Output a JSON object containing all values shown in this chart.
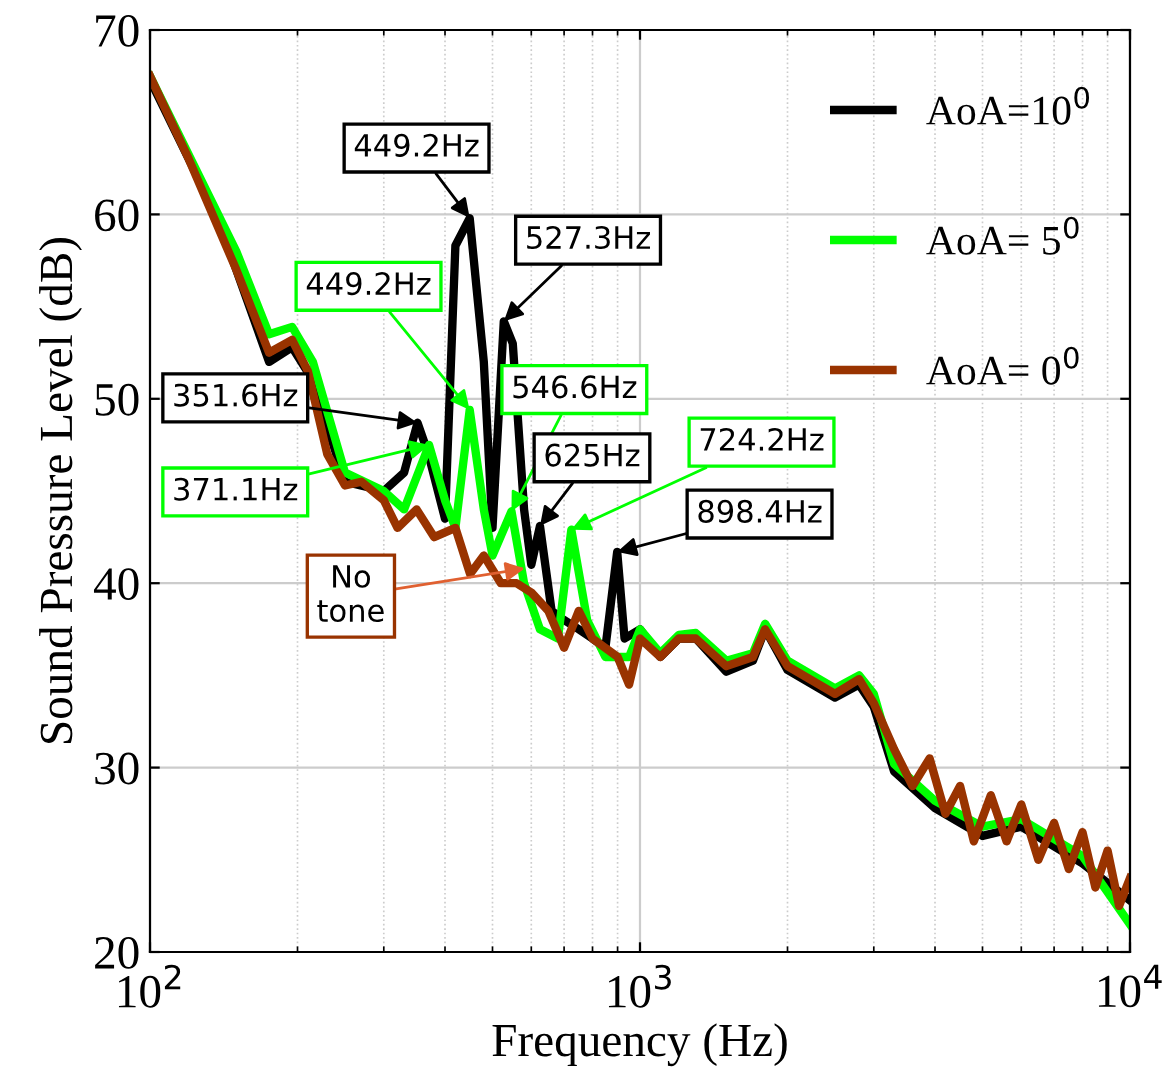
{
  "chart_data": {
    "type": "line",
    "xlabel": "Frequency (Hz)",
    "ylabel": "Sound Pressure Level (dB)",
    "log": "x",
    "xlim": [
      100,
      10000
    ],
    "xticks": [
      {
        "value": 100,
        "label": "10$^{2}$"
      },
      {
        "value": 1000,
        "label": "10$^{3}$"
      },
      {
        "value": 10000,
        "label": "10$^{4}$"
      }
    ],
    "ylim": [
      20,
      70
    ],
    "yticks": [
      20,
      30,
      40,
      50,
      60,
      70
    ],
    "grid": true,
    "legend": "top right",
    "line_style": "solid",
    "marker": "none",
    "series": [
      {
        "name": "AoA=10$^{0}$",
        "color": "#000000",
        "x": [
          100,
          138,
          175,
          195,
          215,
          250,
          300,
          330,
          351.6,
          370,
          400,
          420,
          449.2,
          480,
          500,
          527.3,
          550,
          580,
          600,
          625,
          660,
          700,
          750,
          800,
          850,
          898.4,
          930,
          1000,
          1100,
          1200,
          1300,
          1500,
          1700,
          1800,
          2000,
          2500,
          2800,
          3000,
          3300,
          4000,
          5000,
          6000,
          8000,
          10000
        ],
        "values": [
          67.3,
          59.7,
          52,
          52.8,
          51,
          45.5,
          45,
          46,
          48.7,
          47,
          43.5,
          58.3,
          59.8,
          52,
          43,
          54.2,
          53,
          44,
          41,
          43.1,
          38.5,
          38,
          37.5,
          37,
          36.5,
          41.7,
          37,
          37.5,
          36,
          37,
          37,
          35.2,
          35.8,
          37.5,
          35.3,
          33.8,
          34.5,
          33.3,
          29.8,
          27.8,
          26.3,
          26.8,
          24.8,
          22.8
        ]
      },
      {
        "name": "AoA= 5$^{0}$",
        "color": "#00ff00",
        "x": [
          100,
          150,
          175,
          195,
          215,
          250,
          300,
          330,
          371.1,
          400,
          420,
          449.2,
          480,
          500,
          546.6,
          580,
          625,
          680,
          724.2,
          780,
          850,
          950,
          1000,
          1100,
          1200,
          1300,
          1500,
          1700,
          1800,
          2000,
          2500,
          2800,
          3000,
          3300,
          4000,
          5000,
          6000,
          8000,
          10000
        ],
        "values": [
          67.5,
          58,
          53.5,
          53.9,
          52,
          46,
          45,
          44,
          47.5,
          44.5,
          43,
          49.4,
          44,
          41.5,
          43.9,
          40,
          37.5,
          37,
          42.9,
          38,
          36,
          36,
          37.5,
          36.2,
          37.2,
          37.3,
          35.8,
          36.2,
          37.8,
          35.8,
          34.3,
          35,
          34,
          30.2,
          28.2,
          26.8,
          27.2,
          25.2,
          21.5
        ]
      },
      {
        "name": "AoA= 0$^{0}$",
        "color": "#993300",
        "x": [
          100,
          120,
          150,
          175,
          195,
          210,
          230,
          250,
          270,
          300,
          320,
          350,
          380,
          420,
          450,
          480,
          520,
          560,
          600,
          650,
          700,
          750,
          800,
          900,
          950,
          1000,
          1100,
          1200,
          1300,
          1500,
          1700,
          1800,
          2000,
          2500,
          2800,
          3000,
          3300,
          3600,
          3900,
          4200,
          4500,
          4800,
          5200,
          5600,
          6000,
          6500,
          7000,
          7500,
          8000,
          8500,
          9000,
          9500,
          10000
        ],
        "values": [
          67.5,
          63,
          57,
          52.5,
          53.2,
          51.5,
          47,
          45.3,
          45.5,
          44.5,
          43,
          44,
          42.5,
          43,
          40.5,
          41.5,
          40,
          40,
          39.5,
          38.5,
          36.5,
          38.5,
          37,
          36,
          34.5,
          37,
          36,
          37,
          37,
          35.5,
          36,
          37.5,
          35.5,
          34,
          34.8,
          33.5,
          31,
          29,
          30.5,
          27.5,
          29,
          26,
          28.5,
          26,
          28,
          25,
          27,
          24.5,
          26.5,
          23.5,
          25.5,
          22.5,
          24
        ]
      }
    ],
    "annotations": [
      {
        "text": "449.2Hz",
        "x": 449.2,
        "y": 59.8
      },
      {
        "text": "527.3Hz",
        "x": 527.3,
        "y": 54.2
      },
      {
        "text": "449.2Hz",
        "x": 449.2,
        "y": 49.4
      },
      {
        "text": "351.6Hz",
        "x": 351.6,
        "y": 48.7
      },
      {
        "text": "546.6Hz",
        "x": 546.6,
        "y": 43.9
      },
      {
        "text": "625Hz",
        "x": 625,
        "y": 43.1
      },
      {
        "text": "371.1Hz",
        "x": 371.1,
        "y": 47.5
      },
      {
        "text": "724.2Hz",
        "x": 724.2,
        "y": 42.9
      },
      {
        "text": "898.4Hz",
        "x": 898.4,
        "y": 41.7
      },
      {
        "text": "No\ntone",
        "x": 582,
        "y": 40.8
      }
    ]
  }
}
